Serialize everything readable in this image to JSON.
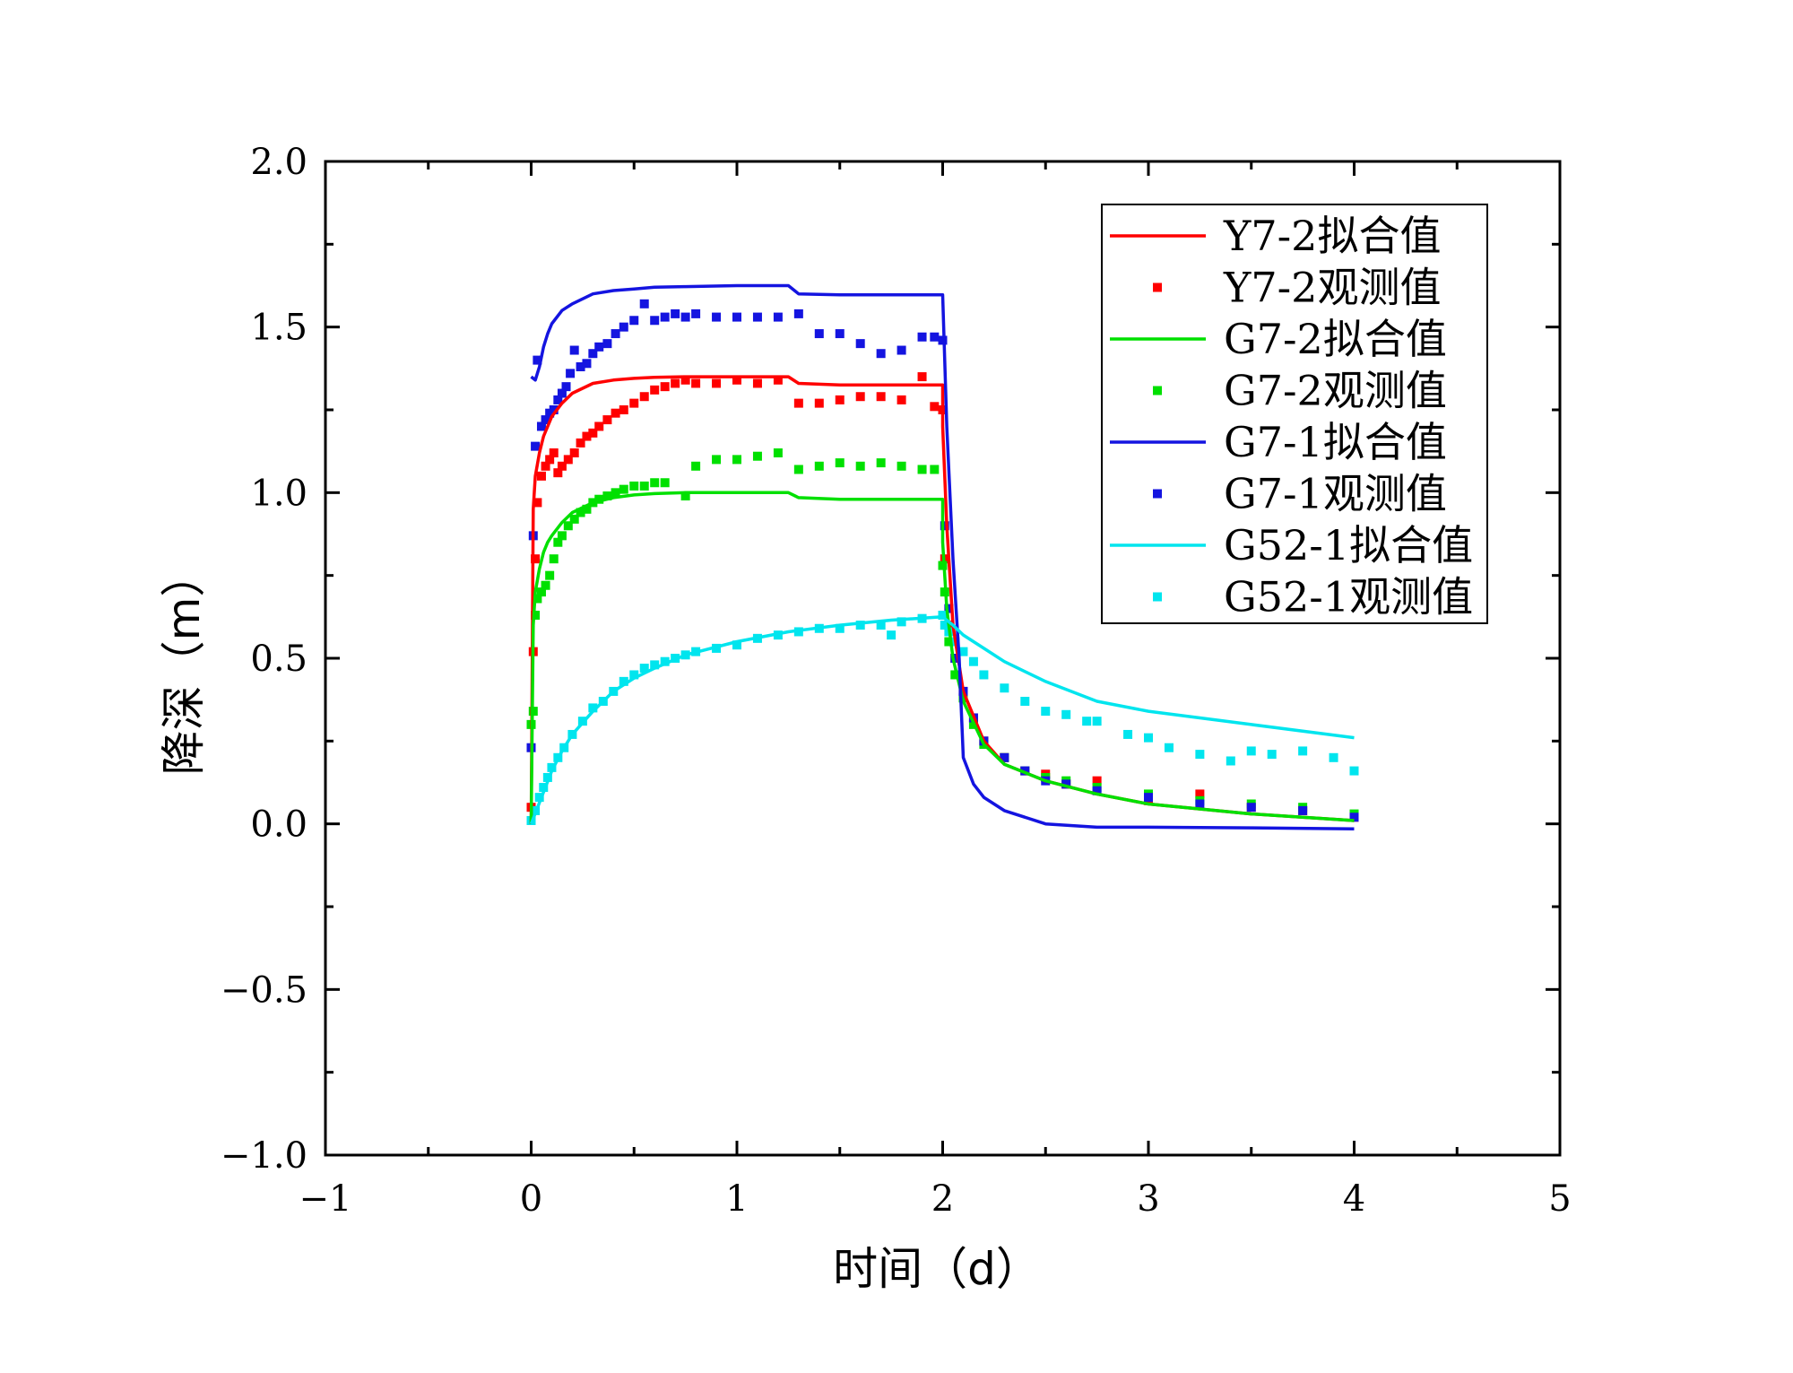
{
  "chart_data": {
    "type": "line",
    "title": "",
    "xlabel": "时间（d）",
    "ylabel": "降深（m）",
    "xlim": [
      -1,
      5
    ],
    "ylim": [
      -1.0,
      2.0
    ],
    "xticks": [
      "−1",
      "0",
      "1",
      "2",
      "3",
      "4",
      "5"
    ],
    "yticks": [
      "−1.0",
      "−0.5",
      "0.0",
      "0.5",
      "1.0",
      "1.5",
      "2.0"
    ],
    "legend_position": "top-right",
    "grid": false,
    "series": [
      {
        "name": "Y7-2拟合值",
        "kind": "line",
        "color": "#ff0000",
        "x": [
          0,
          0.01,
          0.02,
          0.04,
          0.06,
          0.08,
          0.1,
          0.15,
          0.2,
          0.3,
          0.4,
          0.5,
          0.6,
          0.75,
          1.0,
          1.25,
          1.3,
          1.5,
          1.75,
          2.0,
          2.0,
          2.02,
          2.05,
          2.1,
          2.2,
          2.3,
          2.5,
          2.75,
          3.0,
          3.5,
          4.0
        ],
        "y": [
          0,
          0.95,
          1.05,
          1.12,
          1.17,
          1.2,
          1.23,
          1.27,
          1.3,
          1.33,
          1.34,
          1.345,
          1.348,
          1.35,
          1.35,
          1.35,
          1.33,
          1.325,
          1.325,
          1.325,
          1.2,
          0.9,
          0.6,
          0.4,
          0.25,
          0.18,
          0.13,
          0.09,
          0.06,
          0.03,
          0.01
        ]
      },
      {
        "name": "Y7-2观测值",
        "kind": "scatter",
        "color": "#ff0000",
        "x": [
          0,
          0.01,
          0.02,
          0.03,
          0.05,
          0.07,
          0.09,
          0.11,
          0.13,
          0.15,
          0.18,
          0.21,
          0.24,
          0.27,
          0.3,
          0.33,
          0.37,
          0.41,
          0.45,
          0.5,
          0.55,
          0.6,
          0.65,
          0.7,
          0.75,
          0.8,
          0.9,
          1.0,
          1.1,
          1.2,
          1.3,
          1.4,
          1.5,
          1.6,
          1.7,
          1.8,
          1.9,
          1.96,
          2.0,
          2.01,
          2.03,
          2.06,
          2.1,
          2.15,
          2.2,
          2.3,
          2.4,
          2.5,
          2.6,
          2.75,
          3.0,
          3.25,
          3.5,
          3.75,
          4.0
        ],
        "y": [
          0.05,
          0.52,
          0.8,
          0.97,
          1.05,
          1.08,
          1.1,
          1.12,
          1.06,
          1.08,
          1.1,
          1.12,
          1.15,
          1.17,
          1.18,
          1.2,
          1.22,
          1.24,
          1.25,
          1.27,
          1.29,
          1.31,
          1.32,
          1.33,
          1.34,
          1.33,
          1.33,
          1.34,
          1.33,
          1.34,
          1.27,
          1.27,
          1.28,
          1.29,
          1.29,
          1.28,
          1.35,
          1.26,
          1.25,
          0.8,
          0.6,
          0.5,
          0.4,
          0.32,
          0.25,
          0.2,
          0.16,
          0.15,
          0.12,
          0.13,
          0.07,
          0.09,
          0.05,
          0.04,
          0.02
        ]
      },
      {
        "name": "G7-2拟合值",
        "kind": "line",
        "color": "#00e000",
        "x": [
          0,
          0.01,
          0.02,
          0.04,
          0.06,
          0.08,
          0.1,
          0.15,
          0.2,
          0.3,
          0.4,
          0.5,
          0.6,
          0.75,
          1.0,
          1.25,
          1.3,
          1.5,
          1.75,
          2.0,
          2.0,
          2.02,
          2.05,
          2.1,
          2.2,
          2.3,
          2.5,
          2.75,
          3.0,
          3.5,
          4.0
        ],
        "y": [
          0,
          0.6,
          0.7,
          0.77,
          0.82,
          0.85,
          0.87,
          0.91,
          0.94,
          0.97,
          0.985,
          0.993,
          0.997,
          1.0,
          1.0,
          1.0,
          0.985,
          0.98,
          0.98,
          0.98,
          0.85,
          0.65,
          0.5,
          0.37,
          0.24,
          0.18,
          0.13,
          0.09,
          0.06,
          0.03,
          0.01
        ]
      },
      {
        "name": "G7-2观测值",
        "kind": "scatter",
        "color": "#00e000",
        "x": [
          0,
          0.01,
          0.02,
          0.03,
          0.05,
          0.07,
          0.09,
          0.11,
          0.13,
          0.15,
          0.18,
          0.21,
          0.24,
          0.27,
          0.3,
          0.33,
          0.37,
          0.41,
          0.45,
          0.5,
          0.55,
          0.6,
          0.65,
          0.75,
          0.8,
          0.9,
          1.0,
          1.1,
          1.2,
          1.3,
          1.4,
          1.5,
          1.6,
          1.7,
          1.8,
          1.9,
          1.96,
          2.0,
          2.01,
          2.03,
          2.06,
          2.1,
          2.15,
          2.2,
          2.3,
          2.4,
          2.5,
          2.6,
          2.75,
          3.0,
          3.25,
          3.5,
          3.75,
          4.0
        ],
        "y": [
          0.3,
          0.34,
          0.63,
          0.68,
          0.7,
          0.72,
          0.75,
          0.8,
          0.85,
          0.87,
          0.9,
          0.92,
          0.94,
          0.95,
          0.97,
          0.98,
          0.99,
          1.0,
          1.01,
          1.02,
          1.02,
          1.03,
          1.03,
          0.99,
          1.08,
          1.1,
          1.1,
          1.11,
          1.12,
          1.07,
          1.08,
          1.09,
          1.08,
          1.09,
          1.08,
          1.07,
          1.07,
          0.78,
          0.7,
          0.55,
          0.45,
          0.38,
          0.3,
          0.24,
          0.2,
          0.16,
          0.14,
          0.13,
          0.11,
          0.09,
          0.07,
          0.06,
          0.05,
          0.03
        ]
      },
      {
        "name": "G7-1拟合值",
        "kind": "line",
        "color": "#1414e0",
        "x": [
          0,
          0.02,
          0.04,
          0.06,
          0.08,
          0.1,
          0.15,
          0.2,
          0.3,
          0.4,
          0.5,
          0.6,
          0.75,
          1.0,
          1.25,
          1.3,
          1.5,
          1.75,
          2.0,
          2.02,
          2.05,
          2.08,
          2.1,
          2.15,
          2.2,
          2.3,
          2.5,
          2.75,
          3.0,
          3.5,
          4.0
        ],
        "y": [
          1.35,
          1.34,
          1.38,
          1.44,
          1.48,
          1.51,
          1.55,
          1.57,
          1.6,
          1.61,
          1.615,
          1.62,
          1.622,
          1.625,
          1.625,
          1.6,
          1.597,
          1.597,
          1.597,
          1.2,
          0.8,
          0.5,
          0.2,
          0.12,
          0.08,
          0.04,
          0.0,
          -0.01,
          -0.01,
          -0.012,
          -0.015
        ]
      },
      {
        "name": "G7-1观测值",
        "kind": "scatter",
        "color": "#1414e0",
        "x": [
          0,
          0.01,
          0.02,
          0.03,
          0.05,
          0.07,
          0.09,
          0.11,
          0.13,
          0.15,
          0.17,
          0.19,
          0.21,
          0.24,
          0.27,
          0.3,
          0.33,
          0.37,
          0.41,
          0.45,
          0.5,
          0.55,
          0.6,
          0.65,
          0.7,
          0.75,
          0.8,
          0.9,
          1.0,
          1.1,
          1.2,
          1.3,
          1.4,
          1.5,
          1.6,
          1.7,
          1.8,
          1.9,
          1.96,
          2.0,
          2.01,
          2.03,
          2.06,
          2.1,
          2.15,
          2.2,
          2.3,
          2.4,
          2.5,
          2.6,
          2.75,
          3.0,
          3.25,
          3.5,
          3.75,
          4.0
        ],
        "y": [
          0.23,
          0.87,
          1.14,
          1.4,
          1.2,
          1.22,
          1.24,
          1.25,
          1.28,
          1.3,
          1.32,
          1.36,
          1.43,
          1.38,
          1.39,
          1.42,
          1.44,
          1.45,
          1.48,
          1.5,
          1.52,
          1.57,
          1.52,
          1.53,
          1.54,
          1.53,
          1.54,
          1.53,
          1.53,
          1.53,
          1.53,
          1.54,
          1.48,
          1.48,
          1.45,
          1.42,
          1.43,
          1.47,
          1.47,
          1.46,
          0.9,
          0.65,
          0.5,
          0.4,
          0.32,
          0.25,
          0.2,
          0.16,
          0.13,
          0.12,
          0.1,
          0.08,
          0.06,
          0.05,
          0.04,
          0.02
        ]
      },
      {
        "name": "G52-1拟合值",
        "kind": "line",
        "color": "#00e5ee",
        "x": [
          0,
          0.05,
          0.1,
          0.15,
          0.2,
          0.3,
          0.4,
          0.5,
          0.6,
          0.75,
          1.0,
          1.25,
          1.5,
          1.75,
          2.0,
          2.05,
          2.1,
          2.2,
          2.3,
          2.5,
          2.75,
          3.0,
          3.5,
          4.0
        ],
        "y": [
          0,
          0.08,
          0.16,
          0.22,
          0.27,
          0.34,
          0.4,
          0.44,
          0.47,
          0.51,
          0.55,
          0.58,
          0.6,
          0.615,
          0.625,
          0.6,
          0.57,
          0.53,
          0.49,
          0.43,
          0.37,
          0.34,
          0.3,
          0.26
        ]
      },
      {
        "name": "G52-1观测值",
        "kind": "scatter",
        "color": "#00e5ee",
        "x": [
          0,
          0.02,
          0.04,
          0.06,
          0.08,
          0.1,
          0.13,
          0.16,
          0.2,
          0.25,
          0.3,
          0.35,
          0.4,
          0.45,
          0.5,
          0.55,
          0.6,
          0.65,
          0.7,
          0.75,
          0.8,
          0.9,
          1.0,
          1.1,
          1.2,
          1.3,
          1.4,
          1.5,
          1.6,
          1.7,
          1.75,
          1.8,
          1.9,
          2.0,
          2.01,
          2.03,
          2.06,
          2.1,
          2.15,
          2.2,
          2.3,
          2.4,
          2.5,
          2.6,
          2.7,
          2.75,
          2.9,
          3.0,
          3.1,
          3.25,
          3.4,
          3.5,
          3.6,
          3.75,
          3.9,
          4.0
        ],
        "y": [
          0.01,
          0.04,
          0.08,
          0.11,
          0.14,
          0.17,
          0.2,
          0.23,
          0.27,
          0.31,
          0.35,
          0.37,
          0.4,
          0.43,
          0.45,
          0.47,
          0.48,
          0.49,
          0.5,
          0.51,
          0.52,
          0.53,
          0.54,
          0.56,
          0.57,
          0.58,
          0.59,
          0.59,
          0.6,
          0.6,
          0.57,
          0.61,
          0.62,
          0.63,
          0.6,
          0.58,
          0.55,
          0.52,
          0.49,
          0.45,
          0.41,
          0.37,
          0.34,
          0.33,
          0.31,
          0.31,
          0.27,
          0.26,
          0.23,
          0.21,
          0.19,
          0.22,
          0.21,
          0.22,
          0.2,
          0.16
        ]
      }
    ]
  }
}
